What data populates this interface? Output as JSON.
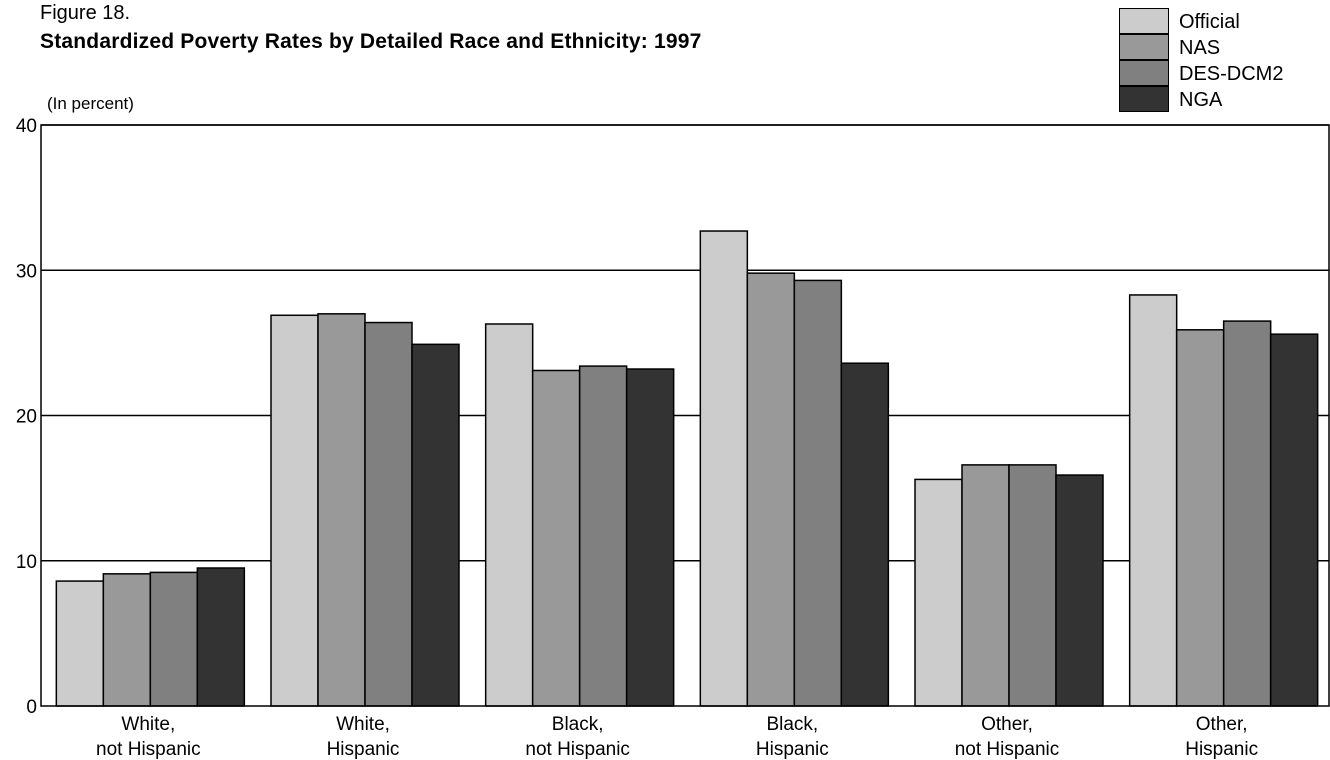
{
  "chart_data": {
    "type": "bar",
    "figure_label": "Figure 18.",
    "title": "Standardized Poverty Rates by Detailed Race and Ethnicity: 1997",
    "units_label": "(In percent)",
    "xlabel": "",
    "ylabel": "",
    "ylim": [
      0,
      40
    ],
    "yticks": [
      0,
      10,
      20,
      30,
      40
    ],
    "grid": true,
    "legend_position": "top-right",
    "categories": [
      [
        "White,",
        "not Hispanic"
      ],
      [
        "White,",
        "Hispanic"
      ],
      [
        "Black,",
        "not Hispanic"
      ],
      [
        "Black,",
        "Hispanic"
      ],
      [
        "Other,",
        "not Hispanic"
      ],
      [
        "Other,",
        "Hispanic"
      ]
    ],
    "series": [
      {
        "name": "Official",
        "color": "#cccccc",
        "values": [
          8.6,
          26.9,
          26.3,
          32.7,
          15.6,
          28.3
        ]
      },
      {
        "name": "NAS",
        "color": "#999999",
        "values": [
          9.1,
          27.0,
          23.1,
          29.8,
          16.6,
          25.9
        ]
      },
      {
        "name": "DES-DCM2",
        "color": "#808080",
        "values": [
          9.2,
          26.4,
          23.4,
          29.3,
          16.6,
          26.5
        ]
      },
      {
        "name": "NGA",
        "color": "#333333",
        "values": [
          9.5,
          24.9,
          23.2,
          23.6,
          15.9,
          25.6
        ]
      }
    ]
  }
}
